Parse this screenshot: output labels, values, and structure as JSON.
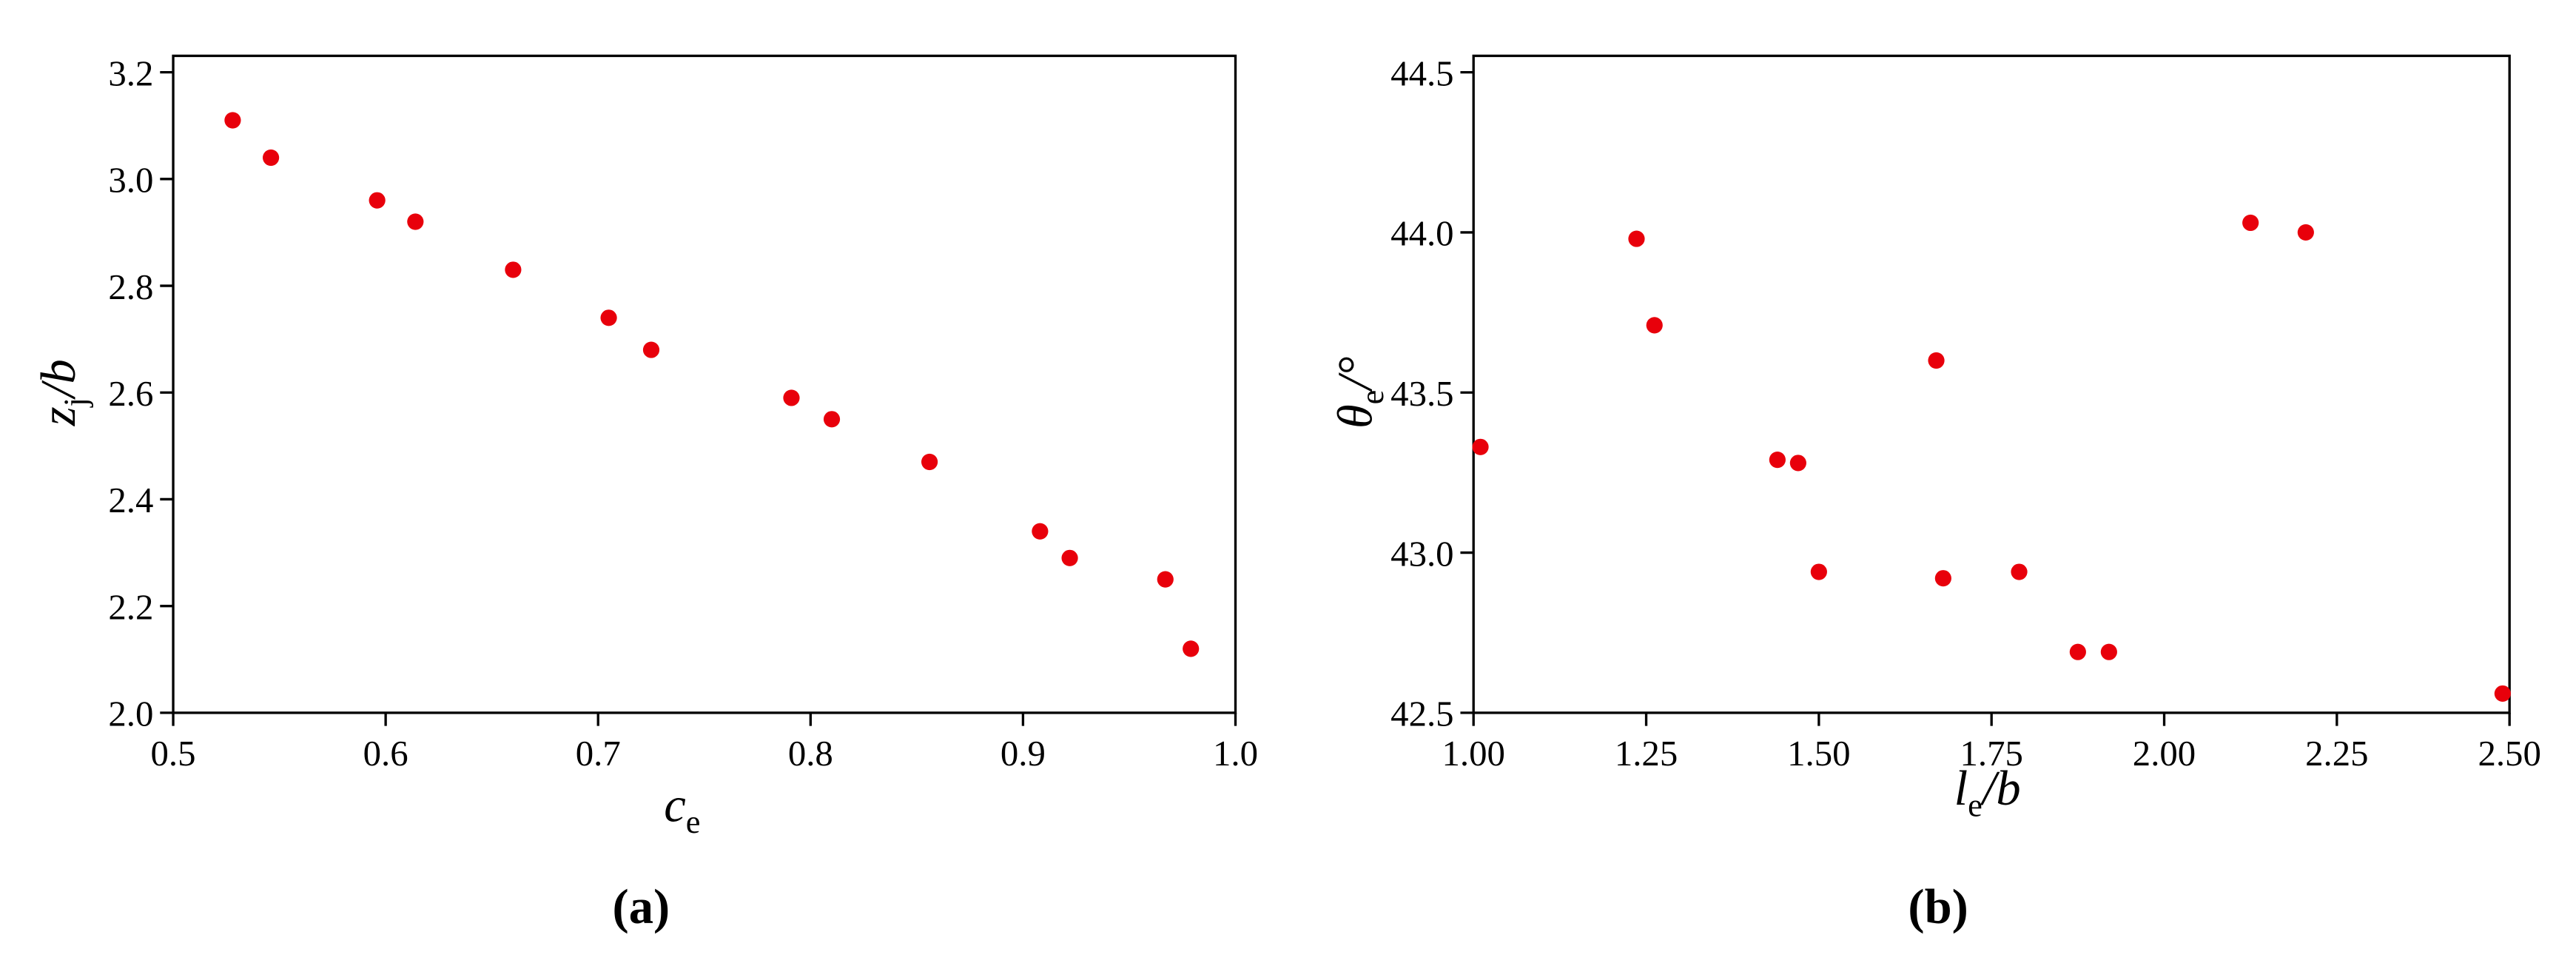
{
  "chart_data": [
    {
      "type": "scatter",
      "caption": "(a)",
      "xlabel": {
        "main": "c",
        "sub": "e"
      },
      "ylabel": {
        "main": "z",
        "sub": "j",
        "rest": "/b"
      },
      "color": "#e8000b",
      "x": [
        0.528,
        0.546,
        0.596,
        0.614,
        0.66,
        0.705,
        0.725,
        0.791,
        0.81,
        0.856,
        0.908,
        0.922,
        0.967,
        0.979
      ],
      "values": [
        3.11,
        3.04,
        2.96,
        2.92,
        2.83,
        2.74,
        2.68,
        2.59,
        2.55,
        2.47,
        2.34,
        2.29,
        2.25,
        2.12
      ],
      "xlim": [
        0.5,
        1.0
      ],
      "xticks": [
        0.5,
        0.6,
        0.7,
        0.8,
        0.9,
        {
          "value": 1,
          "label": "1.0"
        }
      ],
      "ylim": [
        2.0,
        3.2
      ],
      "yticks": [
        {
          "value": 2,
          "label": "2.0"
        },
        2.2,
        2.4,
        2.6,
        2.8,
        {
          "value": 3,
          "label": "3.0"
        },
        3.2
      ]
    },
    {
      "type": "scatter",
      "caption": "(b)",
      "xlabel": {
        "main": "l",
        "sub": "e",
        "rest": "/b"
      },
      "ylabel": {
        "main": "θ",
        "sub": "e",
        "rest": "/°"
      },
      "color": "#e8000b",
      "x": [
        1.01,
        1.236,
        1.262,
        1.44,
        1.47,
        1.5,
        1.67,
        1.68,
        1.79,
        1.875,
        1.92,
        2.125,
        2.205,
        2.49
      ],
      "values": [
        43.33,
        43.98,
        43.71,
        43.29,
        43.28,
        42.94,
        43.6,
        42.92,
        42.94,
        42.69,
        42.69,
        44.03,
        44.0,
        42.56
      ],
      "xlim": [
        1.0,
        2.5
      ],
      "xticks": [
        {
          "value": 1,
          "label": "1.00"
        },
        1.25,
        {
          "value": 1.5,
          "label": "1.50"
        },
        1.75,
        {
          "value": 2,
          "label": "2.00"
        },
        2.25,
        {
          "value": 2.5,
          "label": "2.50"
        }
      ],
      "ylim": [
        42.5,
        44.5
      ],
      "yticks": [
        42.5,
        {
          "value": 43,
          "label": "43.0"
        },
        43.5,
        {
          "value": 44,
          "label": "44.0"
        },
        44.5
      ]
    }
  ]
}
